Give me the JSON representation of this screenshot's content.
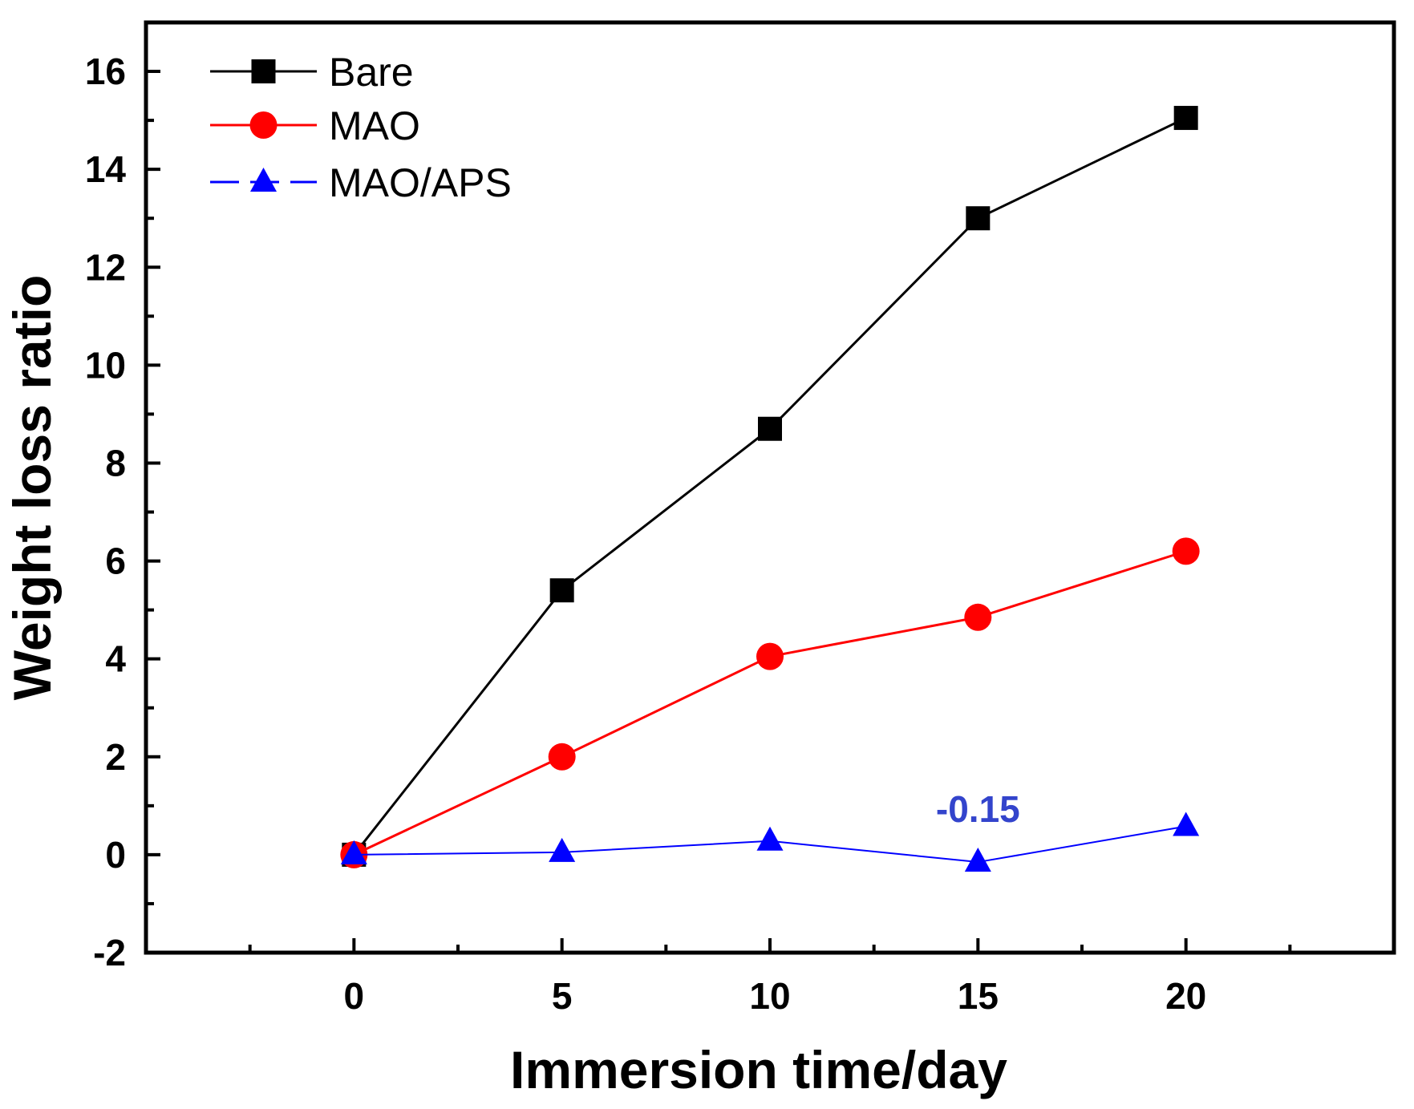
{
  "chart_data": {
    "type": "line",
    "title": "",
    "xlabel": "Immersion time/day",
    "ylabel": "Weight loss ratio",
    "xlim": [
      -5,
      25
    ],
    "ylim": [
      -2,
      17
    ],
    "x": [
      0,
      5,
      10,
      15,
      20
    ],
    "x_ticks": [
      0,
      5,
      10,
      15,
      20
    ],
    "x_tick_labels": [
      "0",
      "5",
      "10",
      "15",
      "20"
    ],
    "y_ticks": [
      -2,
      0,
      2,
      4,
      6,
      8,
      10,
      12,
      14,
      16
    ],
    "y_tick_labels": [
      "-2",
      "0",
      "2",
      "4",
      "6",
      "8",
      "10",
      "12",
      "14",
      "16"
    ],
    "grid": false,
    "legend_position": "top-left",
    "series": [
      {
        "name": "Bare",
        "values": [
          0,
          5.4,
          8.7,
          13.0,
          15.05
        ],
        "color": "#000000",
        "marker": "square",
        "dashed": false
      },
      {
        "name": "MAO",
        "values": [
          0,
          2.0,
          4.05,
          4.85,
          6.2
        ],
        "color": "#ff0000",
        "marker": "circle",
        "dashed": false
      },
      {
        "name": "MAO/APS",
        "values": [
          0,
          0.05,
          0.28,
          -0.15,
          0.58
        ],
        "color": "#0000ff",
        "marker": "triangle",
        "dashed": true
      }
    ],
    "annotations": [
      {
        "text": "-0.15",
        "series": "MAO/APS",
        "x": 15,
        "y": -0.15,
        "color": "#3344cc"
      }
    ]
  }
}
